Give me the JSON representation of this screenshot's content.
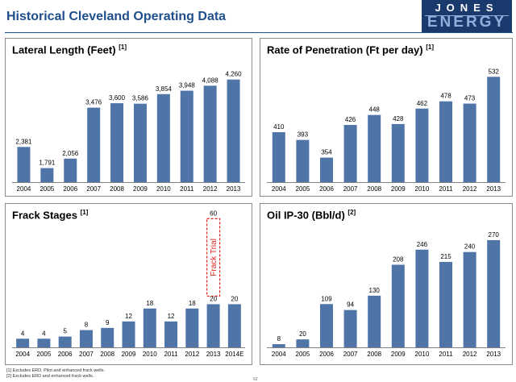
{
  "header": {
    "title": "Historical Cleveland Operating Data"
  },
  "logo": {
    "text": "JONES",
    "sub": "ENERGY"
  },
  "panels": [
    {
      "title": "Lateral Length (Feet)",
      "note": "[1]"
    },
    {
      "title": "Rate of Penetration (Ft per day)",
      "note": "[1]"
    },
    {
      "title": "Frack Stages",
      "note": "[1]"
    },
    {
      "title": "Oil IP-30 (Bbl/d)",
      "note": "[2]"
    }
  ],
  "chart_data": [
    {
      "type": "bar",
      "title": "Lateral Length (Feet)",
      "categories": [
        "2004",
        "2005",
        "2006",
        "2007",
        "2008",
        "2009",
        "2010",
        "2011",
        "2012",
        "2013"
      ],
      "values": [
        2381,
        1791,
        2056,
        3476,
        3600,
        3586,
        3854,
        3948,
        4088,
        4260
      ],
      "labels": [
        "2,381",
        "1,791",
        "2,056",
        "3,476",
        "3,600",
        "3,586",
        "3,854",
        "3,948",
        "4,088",
        "4,260"
      ],
      "ylim": [
        1400,
        4500
      ]
    },
    {
      "type": "bar",
      "title": "Rate of Penetration (Ft per day)",
      "categories": [
        "2004",
        "2005",
        "2006",
        "2007",
        "2008",
        "2009",
        "2010",
        "2011",
        "2012",
        "2013"
      ],
      "values": [
        410,
        393,
        354,
        426,
        448,
        428,
        462,
        478,
        473,
        532
      ],
      "labels": [
        "410",
        "393",
        "354",
        "426",
        "448",
        "428",
        "462",
        "478",
        "473",
        "532"
      ],
      "ylim": [
        300,
        545
      ]
    },
    {
      "type": "bar",
      "title": "Frack Stages",
      "categories": [
        "2004",
        "2005",
        "2006",
        "2007",
        "2008",
        "2009",
        "2010",
        "2011",
        "2012",
        "2013",
        "2014E"
      ],
      "values": [
        4,
        4,
        5,
        8,
        9,
        12,
        18,
        12,
        18,
        20,
        20
      ],
      "labels": [
        "4",
        "4",
        "5",
        "8",
        "9",
        "12",
        "18",
        "12",
        "18",
        "20",
        "20"
      ],
      "ylim": [
        0,
        62
      ],
      "annotation": {
        "category": "2013",
        "value": 60,
        "label": "60",
        "text": "Frack Trial"
      }
    },
    {
      "type": "bar",
      "title": "Oil IP-30 (Bbl/d)",
      "categories": [
        "2004",
        "2005",
        "2006",
        "2007",
        "2008",
        "2009",
        "2010",
        "2011",
        "2012",
        "2013"
      ],
      "values": [
        8,
        20,
        109,
        94,
        130,
        208,
        246,
        215,
        240,
        270
      ],
      "labels": [
        "8",
        "20",
        "109",
        "94",
        "130",
        "208",
        "246",
        "215",
        "240",
        "270"
      ],
      "ylim": [
        0,
        280
      ]
    }
  ],
  "footnotes": [
    "[1]  Excludes ERD, Pilot and enhanced frack wells.",
    "[2]  Excludes ERD and enhanced frack wells."
  ],
  "page_number": "62",
  "colors": {
    "bar": "#4f74a8",
    "title": "#1f4e8c",
    "annotation": "#e0201b",
    "logo": "#1a3a6e"
  }
}
